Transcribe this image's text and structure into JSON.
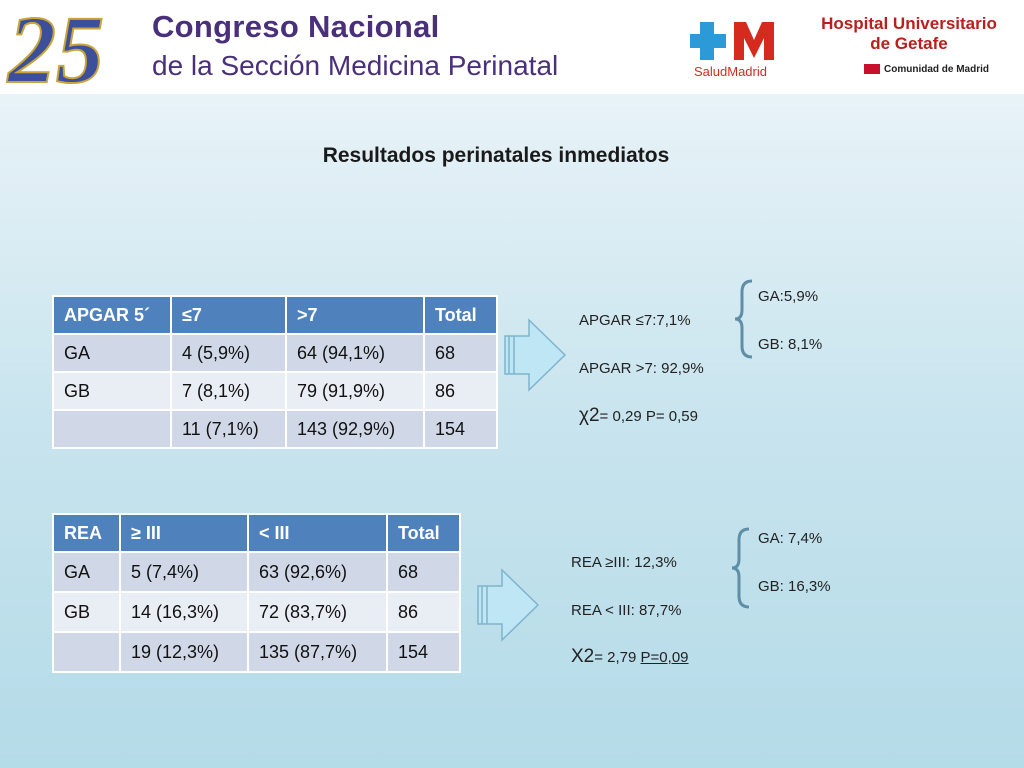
{
  "header": {
    "logo_number": "25",
    "congress_line1": "Congreso Nacional",
    "congress_line2": "de la Sección Medicina Perinatal",
    "salud_logo": "SaludMadrid",
    "hospital_line1": "Hospital Universitario",
    "hospital_line2": "de Getafe",
    "comunidad": "Comunidad de Madrid"
  },
  "title": "Resultados perinatales inmediatos",
  "apgar_table": {
    "headers": [
      "APGAR 5´",
      "≤7",
      ">7",
      "Total"
    ],
    "rows": [
      [
        "GA",
        "4 (5,9%)",
        "64 (94,1%)",
        "68"
      ],
      [
        "GB",
        "7 (8,1%)",
        "79  (91,9%)",
        "86"
      ],
      [
        "",
        "11 (7,1%)",
        "143 (92,9%)",
        "154"
      ]
    ]
  },
  "apgar_stats": {
    "line1": "APGAR ≤7:7,1%",
    "line2": "APGAR >7: 92,9%",
    "chi_symbol": "χ2",
    "chi_rest": "= 0,29 P= 0,59",
    "ga": "GA:5,9%",
    "gb": "GB: 8,1%"
  },
  "rea_table": {
    "headers": [
      "REA",
      "≥ III",
      "< III",
      "Total"
    ],
    "rows": [
      [
        "GA",
        "5 (7,4%)",
        "63 (92,6%)",
        "68"
      ],
      [
        "GB",
        "14  (16,3%)",
        "72 (83,7%)",
        "86"
      ],
      [
        "",
        "19 (12,3%)",
        "135 (87,7%)",
        "154"
      ]
    ]
  },
  "rea_stats": {
    "line1": "REA ≥III: 12,3%",
    "line2": "REA < III: 87,7%",
    "chi_symbol": "X2",
    "chi_mid": "= 2,79 ",
    "chi_p": "P=0,09",
    "ga": "GA: 7,4%",
    "gb": "GB: 16,3%"
  },
  "colors": {
    "table_header": "#4f81bd",
    "row_odd": "#d0d8e8",
    "row_even": "#e9edf4",
    "arrow_fill": "#bfe6f5",
    "brace": "#5e8fa6"
  }
}
